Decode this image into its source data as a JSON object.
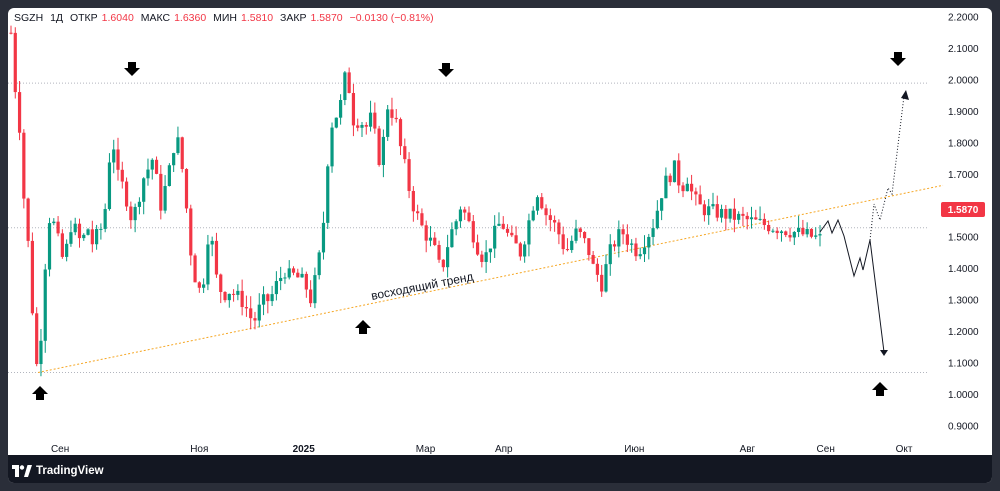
{
  "header": {
    "symbol": "SGZH",
    "timeframe": "1Д",
    "open_label": "ОТКР",
    "open_value": "1.6040",
    "high_label": "МАКС",
    "high_value": "1.6360",
    "low_label": "МИН",
    "low_value": "1.5810",
    "close_label": "ЗАКР",
    "close_value": "1.5870",
    "change_value": "−0.0130 (−0.81%)"
  },
  "price_badge": "1.5870",
  "footer": {
    "brand": "TradingView"
  },
  "colors": {
    "up": "#089981",
    "down": "#f23645",
    "trend": "#f5a623",
    "grid": "#9598a1"
  },
  "chart_data": {
    "type": "candlestick",
    "y_ticks": [
      "2.2000",
      "2.1000",
      "2.0000",
      "1.9000",
      "1.8000",
      "1.7000",
      "1.6000",
      "1.5000",
      "1.4000",
      "1.3000",
      "1.2000",
      "1.1000",
      "1.0000",
      "0.9000"
    ],
    "ylim": [
      0.88,
      2.2
    ],
    "x_ticks": [
      {
        "label": "Сен",
        "x": 0.03,
        "bold": false
      },
      {
        "label": "Ноя",
        "x": 0.19,
        "bold": false
      },
      {
        "label": "2025",
        "x": 0.31,
        "bold": true
      },
      {
        "label": "Мар",
        "x": 0.45,
        "bold": false
      },
      {
        "label": "Апр",
        "x": 0.54,
        "bold": false
      },
      {
        "label": "Июн",
        "x": 0.69,
        "bold": false
      },
      {
        "label": "Авг",
        "x": 0.82,
        "bold": false
      },
      {
        "label": "Сен",
        "x": 0.91,
        "bold": false
      },
      {
        "label": "Окт",
        "x": 1.0,
        "bold": false
      }
    ],
    "price_path": [
      [
        0,
        2.15
      ],
      [
        0.005,
        1.98
      ],
      [
        0.01,
        1.88
      ],
      [
        0.015,
        1.65
      ],
      [
        0.02,
        1.52
      ],
      [
        0.025,
        1.35
      ],
      [
        0.03,
        1.08
      ],
      [
        0.035,
        1.12
      ],
      [
        0.04,
        1.3
      ],
      [
        0.045,
        1.55
      ],
      [
        0.05,
        1.57
      ],
      [
        0.055,
        1.52
      ],
      [
        0.06,
        1.47
      ],
      [
        0.065,
        1.42
      ],
      [
        0.07,
        1.48
      ],
      [
        0.075,
        1.55
      ],
      [
        0.08,
        1.52
      ],
      [
        0.085,
        1.49
      ],
      [
        0.09,
        1.5
      ],
      [
        0.095,
        1.53
      ],
      [
        0.1,
        1.48
      ],
      [
        0.105,
        1.5
      ],
      [
        0.11,
        1.52
      ],
      [
        0.115,
        1.55
      ],
      [
        0.12,
        1.7
      ],
      [
        0.125,
        1.85
      ],
      [
        0.13,
        1.7
      ],
      [
        0.135,
        1.68
      ],
      [
        0.14,
        1.65
      ],
      [
        0.145,
        1.6
      ],
      [
        0.15,
        1.55
      ],
      [
        0.155,
        1.6
      ],
      [
        0.16,
        1.65
      ],
      [
        0.165,
        1.7
      ],
      [
        0.17,
        1.72
      ],
      [
        0.175,
        1.75
      ],
      [
        0.18,
        1.68
      ],
      [
        0.185,
        1.6
      ],
      [
        0.19,
        1.65
      ],
      [
        0.195,
        1.7
      ],
      [
        0.2,
        1.78
      ],
      [
        0.205,
        1.82
      ],
      [
        0.21,
        1.75
      ],
      [
        0.215,
        1.65
      ],
      [
        0.22,
        1.5
      ],
      [
        0.225,
        1.4
      ],
      [
        0.23,
        1.35
      ],
      [
        0.235,
        1.32
      ],
      [
        0.24,
        1.4
      ],
      [
        0.245,
        1.55
      ],
      [
        0.25,
        1.45
      ],
      [
        0.255,
        1.35
      ],
      [
        0.26,
        1.33
      ],
      [
        0.265,
        1.32
      ],
      [
        0.27,
        1.33
      ],
      [
        0.275,
        1.32
      ],
      [
        0.28,
        1.31
      ],
      [
        0.285,
        1.3
      ],
      [
        0.29,
        1.28
      ],
      [
        0.295,
        1.25
      ],
      [
        0.3,
        1.23
      ],
      [
        0.305,
        1.26
      ],
      [
        0.31,
        1.29
      ],
      [
        0.315,
        1.3
      ],
      [
        0.32,
        1.3
      ],
      [
        0.325,
        1.33
      ],
      [
        0.33,
        1.36
      ],
      [
        0.335,
        1.38
      ],
      [
        0.34,
        1.4
      ],
      [
        0.345,
        1.37
      ],
      [
        0.35,
        1.38
      ],
      [
        0.355,
        1.37
      ],
      [
        0.36,
        1.36
      ],
      [
        0.365,
        1.34
      ],
      [
        0.37,
        1.3
      ],
      [
        0.375,
        1.35
      ],
      [
        0.38,
        1.42
      ],
      [
        0.385,
        1.5
      ],
      [
        0.39,
        1.7
      ],
      [
        0.395,
        1.85
      ],
      [
        0.4,
        1.88
      ],
      [
        0.405,
        1.9
      ],
      [
        0.41,
        1.95
      ],
      [
        0.415,
        2.05
      ],
      [
        0.42,
        1.92
      ],
      [
        0.425,
        1.85
      ],
      [
        0.43,
        1.88
      ],
      [
        0.435,
        1.86
      ],
      [
        0.44,
        1.85
      ],
      [
        0.445,
        1.88
      ],
      [
        0.45,
        1.82
      ],
      [
        0.455,
        1.75
      ],
      [
        0.46,
        1.8
      ],
      [
        0.465,
        1.92
      ],
      [
        0.47,
        1.9
      ],
      [
        0.475,
        1.88
      ],
      [
        0.48,
        1.8
      ],
      [
        0.485,
        1.75
      ],
      [
        0.49,
        1.68
      ],
      [
        0.495,
        1.62
      ],
      [
        0.5,
        1.58
      ],
      [
        0.505,
        1.55
      ],
      [
        0.51,
        1.52
      ],
      [
        0.515,
        1.5
      ],
      [
        0.52,
        1.48
      ],
      [
        0.525,
        1.45
      ],
      [
        0.53,
        1.4
      ],
      [
        0.535,
        1.42
      ],
      [
        0.54,
        1.48
      ],
      [
        0.545,
        1.52
      ],
      [
        0.55,
        1.55
      ],
      [
        0.555,
        1.6
      ],
      [
        0.56,
        1.58
      ],
      [
        0.565,
        1.55
      ],
      [
        0.57,
        1.52
      ],
      [
        0.575,
        1.48
      ],
      [
        0.58,
        1.45
      ],
      [
        0.585,
        1.43
      ],
      [
        0.59,
        1.46
      ],
      [
        0.595,
        1.5
      ],
      [
        0.6,
        1.52
      ],
      [
        0.605,
        1.55
      ],
      [
        0.61,
        1.53
      ],
      [
        0.615,
        1.5
      ],
      [
        0.62,
        1.48
      ],
      [
        0.625,
        1.47
      ],
      [
        0.63,
        1.45
      ],
      [
        0.635,
        1.5
      ],
      [
        0.64,
        1.55
      ],
      [
        0.645,
        1.6
      ],
      [
        0.65,
        1.65
      ],
      [
        0.655,
        1.62
      ],
      [
        0.66,
        1.58
      ],
      [
        0.665,
        1.56
      ],
      [
        0.67,
        1.55
      ],
      [
        0.675,
        1.52
      ],
      [
        0.68,
        1.5
      ],
      [
        0.685,
        1.45
      ],
      [
        0.69,
        1.47
      ],
      [
        0.695,
        1.5
      ],
      [
        0.7,
        1.52
      ],
      [
        0.705,
        1.5
      ],
      [
        0.71,
        1.48
      ],
      [
        0.715,
        1.45
      ],
      [
        0.72,
        1.4
      ],
      [
        0.725,
        1.38
      ],
      [
        0.73,
        1.35
      ],
      [
        0.735,
        1.4
      ],
      [
        0.74,
        1.45
      ],
      [
        0.745,
        1.48
      ],
      [
        0.75,
        1.5
      ],
      [
        0.755,
        1.52
      ],
      [
        0.76,
        1.5
      ],
      [
        0.765,
        1.48
      ],
      [
        0.77,
        1.47
      ],
      [
        0.775,
        1.45
      ],
      [
        0.78,
        1.48
      ],
      [
        0.785,
        1.5
      ],
      [
        0.79,
        1.52
      ],
      [
        0.795,
        1.55
      ],
      [
        0.8,
        1.6
      ],
      [
        0.805,
        1.65
      ],
      [
        0.81,
        1.68
      ],
      [
        0.815,
        1.7
      ],
      [
        0.82,
        1.72
      ],
      [
        0.825,
        1.68
      ],
      [
        0.83,
        1.66
      ],
      [
        0.835,
        1.7
      ],
      [
        0.84,
        1.65
      ],
      [
        0.845,
        1.62
      ],
      [
        0.85,
        1.6
      ],
      [
        0.855,
        1.59
      ],
      [
        0.86,
        1.587
      ]
    ]
  }
}
